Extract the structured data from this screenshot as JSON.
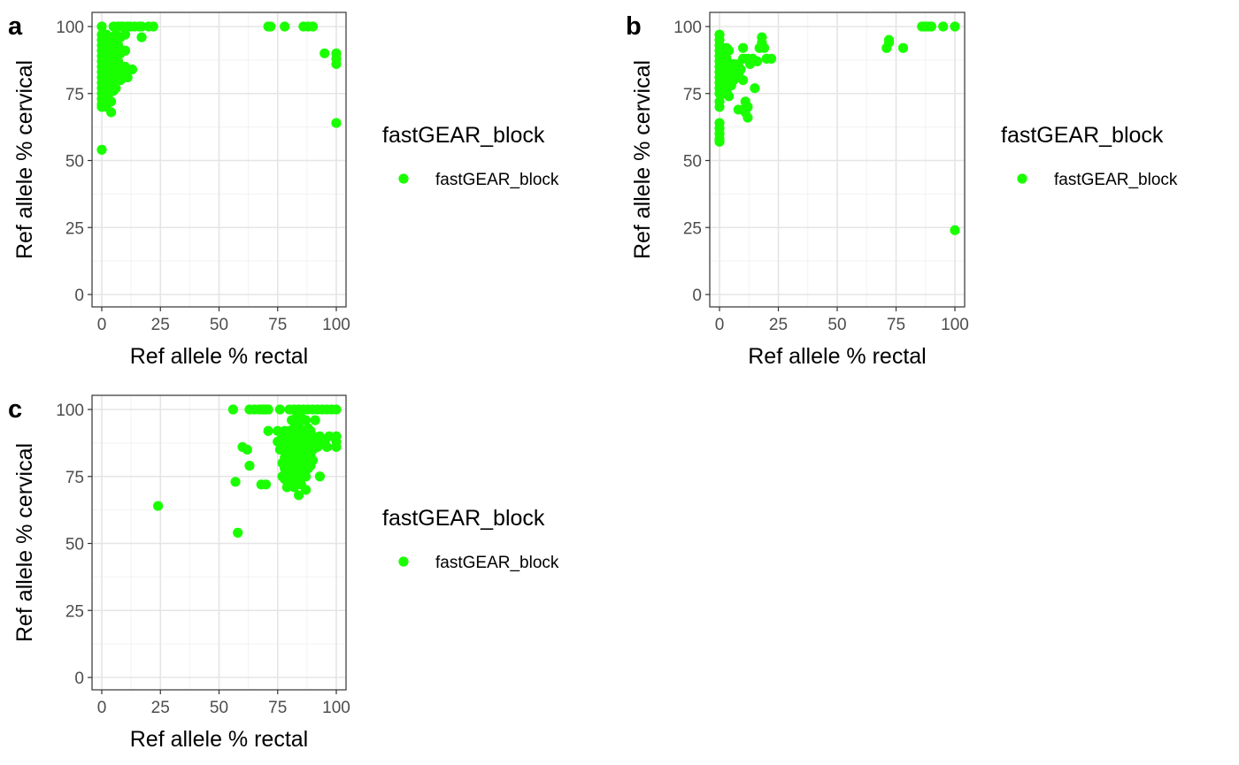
{
  "colors": {
    "point": "#1aff00",
    "grid_major": "#e5e5e5",
    "grid_minor": "#f2f2f2",
    "panel_border": "#333333",
    "tick_text": "#4d4d4d"
  },
  "chart_data": [
    {
      "type": "scatter",
      "tag": "a",
      "xlabel": "Ref allele % rectal",
      "ylabel": "Ref allele % cervical",
      "xlim": [
        0,
        100
      ],
      "ylim": [
        0,
        100
      ],
      "xticks": [
        "0",
        "25",
        "50",
        "75",
        "100"
      ],
      "yticks": [
        "0",
        "25",
        "50",
        "75",
        "100"
      ],
      "grid": true,
      "legend": {
        "title": "fastGEAR_block",
        "entries": [
          "fastGEAR_block"
        ],
        "placement": "right"
      },
      "points": [
        [
          0,
          100
        ],
        [
          0,
          97
        ],
        [
          0,
          95
        ],
        [
          0,
          93
        ],
        [
          0,
          91
        ],
        [
          0,
          89
        ],
        [
          0,
          87
        ],
        [
          0,
          85
        ],
        [
          0,
          83
        ],
        [
          0,
          81
        ],
        [
          0,
          79
        ],
        [
          0,
          77
        ],
        [
          0,
          75
        ],
        [
          0,
          73
        ],
        [
          0,
          71
        ],
        [
          0,
          70
        ],
        [
          0,
          54
        ],
        [
          1,
          96
        ],
        [
          1,
          92
        ],
        [
          1,
          88
        ],
        [
          1,
          84
        ],
        [
          1,
          80
        ],
        [
          1,
          76
        ],
        [
          1,
          72
        ],
        [
          2,
          97
        ],
        [
          2,
          93
        ],
        [
          2,
          89
        ],
        [
          2,
          85
        ],
        [
          2,
          81
        ],
        [
          2,
          77
        ],
        [
          2,
          74
        ],
        [
          2,
          70
        ],
        [
          3,
          95
        ],
        [
          3,
          90
        ],
        [
          3,
          86
        ],
        [
          3,
          82
        ],
        [
          3,
          78
        ],
        [
          3,
          75
        ],
        [
          4,
          96
        ],
        [
          4,
          92
        ],
        [
          4,
          84
        ],
        [
          4,
          80
        ],
        [
          4,
          72
        ],
        [
          4,
          68
        ],
        [
          5,
          100
        ],
        [
          5,
          95
        ],
        [
          5,
          88
        ],
        [
          5,
          83
        ],
        [
          5,
          79
        ],
        [
          5,
          76
        ],
        [
          6,
          97
        ],
        [
          6,
          90
        ],
        [
          6,
          85
        ],
        [
          6,
          80
        ],
        [
          6,
          77
        ],
        [
          7,
          100
        ],
        [
          7,
          93
        ],
        [
          7,
          87
        ],
        [
          7,
          82
        ],
        [
          8,
          100
        ],
        [
          8,
          96
        ],
        [
          8,
          90
        ],
        [
          8,
          84
        ],
        [
          8,
          80
        ],
        [
          9,
          100
        ],
        [
          10,
          97
        ],
        [
          10,
          91
        ],
        [
          10,
          85
        ],
        [
          10,
          83
        ],
        [
          11,
          100
        ],
        [
          11,
          81
        ],
        [
          12,
          100
        ],
        [
          13,
          84
        ],
        [
          14,
          100
        ],
        [
          16,
          100
        ],
        [
          17,
          100
        ],
        [
          17,
          96
        ],
        [
          20,
          100
        ],
        [
          22,
          100
        ],
        [
          71,
          100
        ],
        [
          72,
          100
        ],
        [
          78,
          100
        ],
        [
          86,
          100
        ],
        [
          88,
          100
        ],
        [
          90,
          100
        ],
        [
          95,
          90
        ],
        [
          100,
          90
        ],
        [
          100,
          88
        ],
        [
          100,
          86
        ],
        [
          100,
          64
        ]
      ]
    },
    {
      "type": "scatter",
      "tag": "b",
      "xlabel": "Ref allele % rectal",
      "ylabel": "Ref allele % cervical",
      "xlim": [
        0,
        100
      ],
      "ylim": [
        0,
        100
      ],
      "xticks": [
        "0",
        "25",
        "50",
        "75",
        "100"
      ],
      "yticks": [
        "0",
        "25",
        "50",
        "75",
        "100"
      ],
      "grid": true,
      "legend": {
        "title": "fastGEAR_block",
        "entries": [
          "fastGEAR_block"
        ],
        "placement": "right"
      },
      "points": [
        [
          0,
          97
        ],
        [
          0,
          95
        ],
        [
          0,
          93
        ],
        [
          0,
          91
        ],
        [
          0,
          89
        ],
        [
          0,
          87
        ],
        [
          0,
          85
        ],
        [
          0,
          83
        ],
        [
          0,
          81
        ],
        [
          0,
          79
        ],
        [
          0,
          77
        ],
        [
          0,
          75
        ],
        [
          0,
          72
        ],
        [
          0,
          70
        ],
        [
          0,
          64
        ],
        [
          0,
          62
        ],
        [
          0,
          60
        ],
        [
          0,
          58
        ],
        [
          0,
          57
        ],
        [
          1,
          92
        ],
        [
          1,
          88
        ],
        [
          1,
          84
        ],
        [
          1,
          80
        ],
        [
          1,
          76
        ],
        [
          2,
          90
        ],
        [
          2,
          86
        ],
        [
          2,
          82
        ],
        [
          2,
          78
        ],
        [
          2,
          75
        ],
        [
          3,
          92
        ],
        [
          3,
          88
        ],
        [
          3,
          84
        ],
        [
          3,
          80
        ],
        [
          3,
          76
        ],
        [
          4,
          91
        ],
        [
          4,
          86
        ],
        [
          4,
          82
        ],
        [
          4,
          79
        ],
        [
          4,
          74
        ],
        [
          5,
          85
        ],
        [
          5,
          81
        ],
        [
          5,
          78
        ],
        [
          6,
          86
        ],
        [
          6,
          83
        ],
        [
          6,
          80
        ],
        [
          7,
          84
        ],
        [
          7,
          81
        ],
        [
          8,
          86
        ],
        [
          8,
          82
        ],
        [
          8,
          69
        ],
        [
          9,
          84
        ],
        [
          10,
          92
        ],
        [
          10,
          88
        ],
        [
          10,
          80
        ],
        [
          10,
          69
        ],
        [
          11,
          72
        ],
        [
          11,
          68
        ],
        [
          12,
          70
        ],
        [
          12,
          66
        ],
        [
          12,
          88
        ],
        [
          13,
          86
        ],
        [
          14,
          88
        ],
        [
          15,
          77
        ],
        [
          16,
          87
        ],
        [
          17,
          92
        ],
        [
          18,
          94
        ],
        [
          18,
          96
        ],
        [
          19,
          92
        ],
        [
          20,
          88
        ],
        [
          22,
          88
        ],
        [
          71,
          92
        ],
        [
          72,
          94
        ],
        [
          72,
          95
        ],
        [
          78,
          92
        ],
        [
          86,
          100
        ],
        [
          87,
          100
        ],
        [
          88,
          100
        ],
        [
          89,
          100
        ],
        [
          90,
          100
        ],
        [
          95,
          100
        ],
        [
          100,
          100
        ],
        [
          100,
          24
        ]
      ]
    },
    {
      "type": "scatter",
      "tag": "c",
      "xlabel": "Ref allele % rectal",
      "ylabel": "Ref allele % cervical",
      "xlim": [
        0,
        100
      ],
      "ylim": [
        0,
        100
      ],
      "xticks": [
        "0",
        "25",
        "50",
        "75",
        "100"
      ],
      "yticks": [
        "0",
        "25",
        "50",
        "75",
        "100"
      ],
      "grid": true,
      "legend": {
        "title": "fastGEAR_block",
        "entries": [
          "fastGEAR_block"
        ],
        "placement": "right"
      },
      "points": [
        [
          24,
          64
        ],
        [
          57,
          73
        ],
        [
          58,
          54
        ],
        [
          56,
          100
        ],
        [
          60,
          86
        ],
        [
          62,
          85
        ],
        [
          63,
          79
        ],
        [
          63,
          100
        ],
        [
          65,
          100
        ],
        [
          67,
          100
        ],
        [
          68,
          100
        ],
        [
          69,
          100
        ],
        [
          70,
          100
        ],
        [
          71,
          100
        ],
        [
          76,
          100
        ],
        [
          68,
          72
        ],
        [
          70,
          72
        ],
        [
          71,
          92
        ],
        [
          75,
          92
        ],
        [
          75,
          88
        ],
        [
          76,
          85
        ],
        [
          77,
          90
        ],
        [
          77,
          80
        ],
        [
          77,
          75
        ],
        [
          78,
          92
        ],
        [
          78,
          87
        ],
        [
          78,
          82
        ],
        [
          78,
          78
        ],
        [
          78,
          74
        ],
        [
          79,
          90
        ],
        [
          79,
          85
        ],
        [
          79,
          80
        ],
        [
          79,
          76
        ],
        [
          79,
          71
        ],
        [
          80,
          100
        ],
        [
          80,
          92
        ],
        [
          80,
          88
        ],
        [
          80,
          84
        ],
        [
          80,
          79
        ],
        [
          80,
          75
        ],
        [
          80,
          72
        ],
        [
          81,
          96
        ],
        [
          81,
          89
        ],
        [
          81,
          85
        ],
        [
          81,
          81
        ],
        [
          81,
          77
        ],
        [
          82,
          100
        ],
        [
          82,
          93
        ],
        [
          82,
          88
        ],
        [
          82,
          84
        ],
        [
          82,
          80
        ],
        [
          82,
          76
        ],
        [
          82,
          71
        ],
        [
          83,
          97
        ],
        [
          83,
          91
        ],
        [
          83,
          86
        ],
        [
          83,
          82
        ],
        [
          83,
          78
        ],
        [
          83,
          73
        ],
        [
          84,
          100
        ],
        [
          84,
          94
        ],
        [
          84,
          89
        ],
        [
          84,
          85
        ],
        [
          84,
          80
        ],
        [
          84,
          75
        ],
        [
          84,
          68
        ],
        [
          85,
          97
        ],
        [
          85,
          92
        ],
        [
          85,
          87
        ],
        [
          85,
          83
        ],
        [
          85,
          79
        ],
        [
          85,
          72
        ],
        [
          86,
          100
        ],
        [
          86,
          91
        ],
        [
          86,
          86
        ],
        [
          86,
          81
        ],
        [
          86,
          76
        ],
        [
          87,
          96
        ],
        [
          87,
          89
        ],
        [
          87,
          84
        ],
        [
          87,
          80
        ],
        [
          87,
          75
        ],
        [
          87,
          70
        ],
        [
          88,
          100
        ],
        [
          88,
          93
        ],
        [
          88,
          86
        ],
        [
          88,
          82
        ],
        [
          88,
          78
        ],
        [
          89,
          92
        ],
        [
          89,
          88
        ],
        [
          89,
          83
        ],
        [
          89,
          79
        ],
        [
          90,
          100
        ],
        [
          90,
          90
        ],
        [
          90,
          85
        ],
        [
          90,
          81
        ],
        [
          91,
          96
        ],
        [
          91,
          88
        ],
        [
          92,
          100
        ],
        [
          92,
          86
        ],
        [
          93,
          90
        ],
        [
          93,
          75
        ],
        [
          94,
          100
        ],
        [
          95,
          88
        ],
        [
          96,
          100
        ],
        [
          96,
          86
        ],
        [
          97,
          90
        ],
        [
          98,
          100
        ],
        [
          100,
          100
        ],
        [
          100,
          90
        ],
        [
          100,
          88
        ],
        [
          100,
          86
        ]
      ]
    }
  ]
}
